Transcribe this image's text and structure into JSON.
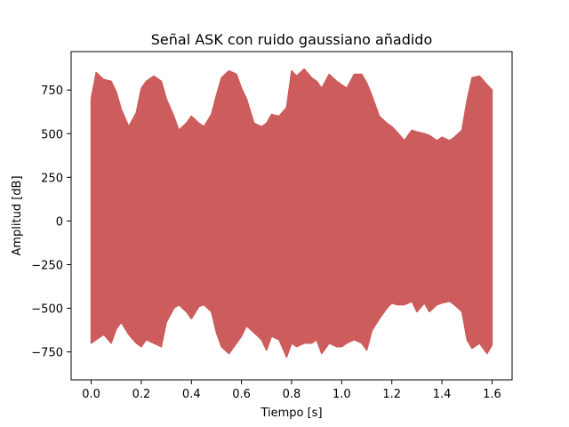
{
  "chart_data": {
    "type": "area",
    "title": "Señal ASK con ruido gaussiano añadido",
    "xlabel": "Tiempo [s]",
    "ylabel": "Amplitud [dB]",
    "xlim": [
      -0.08,
      1.68
    ],
    "ylim": [
      -910,
      970
    ],
    "xticks": [
      0.0,
      0.2,
      0.4,
      0.6,
      0.8,
      1.0,
      1.2,
      1.4,
      1.6
    ],
    "xtick_labels": [
      "0.0",
      "0.2",
      "0.4",
      "0.6",
      "0.8",
      "1.0",
      "1.2",
      "1.4",
      "1.6"
    ],
    "yticks": [
      750,
      500,
      250,
      0,
      -250,
      -500,
      -750
    ],
    "ytick_labels": [
      "750",
      "500",
      "250",
      "0",
      "−250",
      "−500",
      "−750"
    ],
    "grid": false,
    "legend": "none",
    "series": [
      {
        "color": "#cd5c5c",
        "x": [
          0.0,
          0.02,
          0.05,
          0.08,
          0.1,
          0.12,
          0.15,
          0.18,
          0.2,
          0.22,
          0.25,
          0.28,
          0.3,
          0.33,
          0.35,
          0.38,
          0.4,
          0.43,
          0.45,
          0.48,
          0.5,
          0.52,
          0.55,
          0.58,
          0.6,
          0.62,
          0.65,
          0.68,
          0.7,
          0.72,
          0.75,
          0.78,
          0.8,
          0.82,
          0.85,
          0.88,
          0.9,
          0.92,
          0.95,
          0.98,
          1.0,
          1.02,
          1.05,
          1.08,
          1.1,
          1.12,
          1.15,
          1.18,
          1.2,
          1.22,
          1.25,
          1.28,
          1.3,
          1.33,
          1.35,
          1.38,
          1.4,
          1.43,
          1.45,
          1.48,
          1.5,
          1.52,
          1.55,
          1.58,
          1.6
        ],
        "upper": [
          700,
          850,
          810,
          800,
          740,
          640,
          540,
          620,
          760,
          800,
          830,
          800,
          700,
          600,
          520,
          560,
          600,
          560,
          540,
          610,
          720,
          820,
          860,
          840,
          760,
          700,
          560,
          540,
          560,
          610,
          600,
          650,
          860,
          830,
          870,
          820,
          800,
          760,
          840,
          800,
          780,
          760,
          840,
          840,
          790,
          720,
          600,
          560,
          540,
          510,
          460,
          520,
          510,
          500,
          490,
          460,
          480,
          460,
          480,
          520,
          690,
          820,
          830,
          780,
          750
        ],
        "lower": [
          -700,
          -680,
          -650,
          -700,
          -620,
          -580,
          -650,
          -700,
          -720,
          -680,
          -700,
          -720,
          -580,
          -500,
          -480,
          -520,
          -560,
          -490,
          -480,
          -520,
          -640,
          -720,
          -760,
          -700,
          -660,
          -600,
          -640,
          -680,
          -740,
          -660,
          -680,
          -780,
          -700,
          -720,
          -700,
          -700,
          -680,
          -760,
          -700,
          -720,
          -720,
          -700,
          -680,
          -700,
          -740,
          -630,
          -560,
          -500,
          -470,
          -480,
          -480,
          -460,
          -520,
          -470,
          -520,
          -480,
          -470,
          -460,
          -480,
          -520,
          -680,
          -730,
          -700,
          -760,
          -710
        ]
      }
    ]
  }
}
